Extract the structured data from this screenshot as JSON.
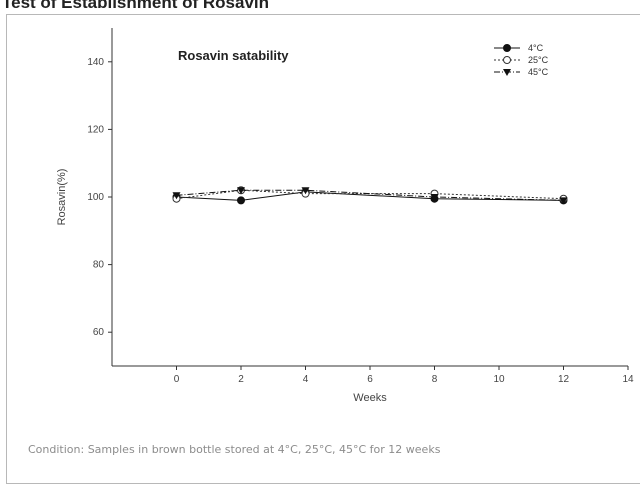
{
  "page": {
    "header_title": "Test of Establishment of Rosavin",
    "caption": "Condition: Samples in brown bottle stored at 4°C, 25°C, 45°C for 12 weeks"
  },
  "chart_data": {
    "type": "line",
    "title": "Rosavin satability",
    "xlabel": "Weeks",
    "ylabel": "Rosavin(%)",
    "xlim": [
      -2,
      14
    ],
    "ylim": [
      50,
      150
    ],
    "xticks": [
      0,
      2,
      4,
      6,
      8,
      10,
      12,
      14
    ],
    "yticks": [
      60,
      80,
      100,
      120,
      140
    ],
    "x": [
      0,
      2,
      4,
      8,
      12
    ],
    "series": [
      {
        "name": "4°C",
        "values": [
          100,
          99,
          101.5,
          99.5,
          99
        ],
        "marker": "filled-circle",
        "line": "solid",
        "color": "#111111"
      },
      {
        "name": "25°C",
        "values": [
          99.5,
          102,
          101,
          101,
          99.5
        ],
        "marker": "open-circle",
        "line": "dotted",
        "color": "#333333"
      },
      {
        "name": "45°C",
        "values": [
          100.5,
          102,
          102,
          100,
          99
        ],
        "marker": "filled-triangle-down",
        "line": "dash-dot",
        "color": "#111111"
      }
    ],
    "legend_position": "top-right",
    "grid": false
  }
}
